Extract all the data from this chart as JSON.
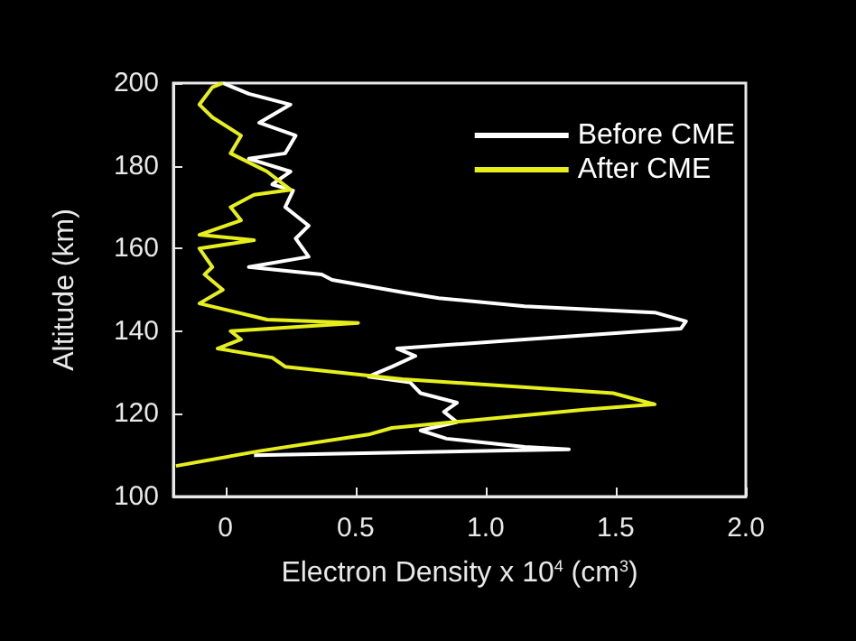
{
  "chart_data": {
    "type": "line",
    "xlabel": "Electron Density x 10$^{4}$ (cm$^{3}$)",
    "ylabel": "Altitude (km)",
    "xlim": [
      -0.2,
      2.0
    ],
    "xticks": [
      0,
      0.5,
      {
        "value": 1,
        "label": "1.0"
      },
      1.5,
      {
        "value": 2,
        "label": "2.0"
      }
    ],
    "ylim": [
      100,
      200
    ],
    "yticks": [
      100,
      120,
      140,
      160,
      180,
      200
    ],
    "grid": false,
    "legend": "top right",
    "marker": "none",
    "line_style": "solid",
    "series": [
      {
        "name": "Before CME",
        "color": "#ffffff",
        "x": [
          0.11,
          1.32,
          1.15,
          0.85,
          0.75,
          0.89,
          0.84,
          0.89,
          0.75,
          0.71,
          0.55,
          0.64,
          0.73,
          0.66,
          1.15,
          1.75,
          1.77,
          1.65,
          1.15,
          0.82,
          0.69,
          0.41,
          0.37,
          0.09,
          0.32,
          0.27,
          0.32,
          0.23,
          0.26,
          0.18,
          0.25,
          0.09,
          0.23,
          0.27,
          0.13,
          0.25,
          0.09,
          -0.01
        ],
        "values": [
          110,
          111.4,
          112,
          114,
          116,
          118,
          120.5,
          122.7,
          125,
          127.6,
          129,
          131.4,
          134,
          135.8,
          138,
          140.6,
          142.4,
          144.5,
          146,
          148,
          149.3,
          152.4,
          153.7,
          155.5,
          158,
          162.4,
          165.5,
          170,
          174,
          175.5,
          178.6,
          181.7,
          183,
          187.3,
          190.4,
          194.8,
          197.4,
          200
        ]
      },
      {
        "name": "After CME",
        "color": "#e6ef1c",
        "x": [
          -0.19,
          0.13,
          0.55,
          0.64,
          1.38,
          1.65,
          1.49,
          0.68,
          0.23,
          0.18,
          -0.03,
          0.06,
          0.02,
          0.51,
          0.16,
          -0.1,
          -0.01,
          -0.08,
          -0.05,
          -0.1,
          0.11,
          -0.1,
          0.06,
          0.02,
          0.11,
          0.25,
          0.16,
          0.02,
          0.06,
          -0.05,
          -0.1,
          -0.05,
          -0.01
        ],
        "values": [
          107.4,
          111,
          115,
          116.6,
          121,
          122.3,
          125,
          128.4,
          131.4,
          133.6,
          135.8,
          138,
          140,
          142,
          142.8,
          146.7,
          150,
          153.7,
          155.5,
          160,
          162,
          163.3,
          166.8,
          170,
          173,
          174.2,
          178.6,
          183,
          187.3,
          191.7,
          194.8,
          199,
          200
        ]
      }
    ]
  }
}
